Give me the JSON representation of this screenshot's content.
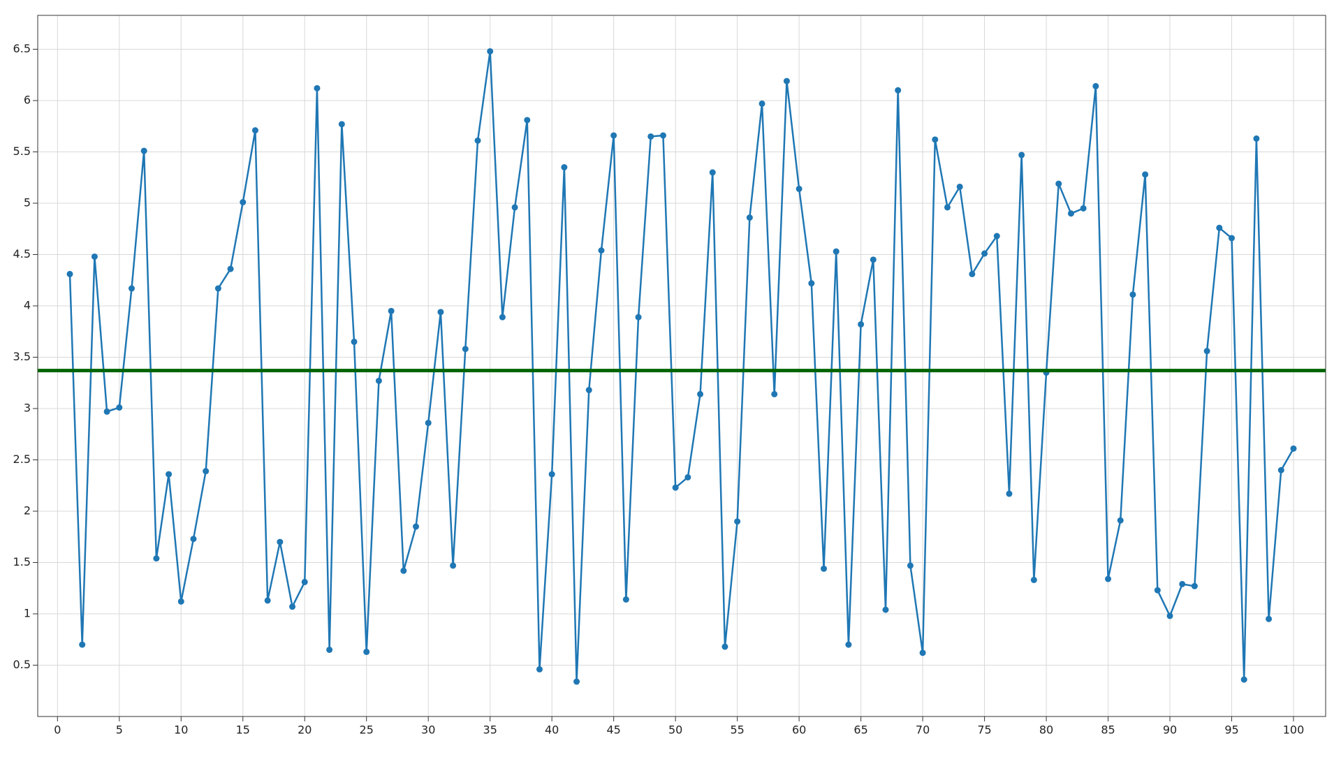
{
  "chart_data": {
    "type": "line",
    "x": [
      1,
      2,
      3,
      4,
      5,
      6,
      7,
      8,
      9,
      10,
      11,
      12,
      13,
      14,
      15,
      16,
      17,
      18,
      19,
      20,
      21,
      22,
      23,
      24,
      25,
      26,
      27,
      28,
      29,
      30,
      31,
      32,
      33,
      34,
      35,
      36,
      37,
      38,
      39,
      40,
      41,
      42,
      43,
      44,
      45,
      46,
      47,
      48,
      49,
      50,
      51,
      52,
      53,
      54,
      55,
      56,
      57,
      58,
      59,
      60,
      61,
      62,
      63,
      64,
      65,
      66,
      67,
      68,
      69,
      70,
      71,
      72,
      73,
      74,
      75,
      76,
      77,
      78,
      79,
      80,
      81,
      82,
      83,
      84,
      85,
      86,
      87,
      88,
      89,
      90,
      91,
      92,
      93,
      94,
      95,
      96,
      97,
      98,
      99,
      100
    ],
    "series": [
      {
        "color": "#1f77b4",
        "values": [
          4.31,
          0.7,
          4.48,
          2.97,
          3.01,
          4.17,
          5.51,
          1.54,
          2.36,
          1.12,
          1.73,
          2.39,
          4.17,
          4.36,
          5.01,
          5.71,
          1.13,
          1.7,
          1.07,
          1.31,
          6.12,
          0.65,
          5.77,
          3.65,
          0.63,
          3.27,
          3.95,
          1.42,
          1.85,
          2.86,
          3.94,
          1.47,
          3.58,
          5.61,
          6.48,
          3.89,
          4.96,
          5.81,
          0.46,
          2.36,
          5.35,
          0.34,
          3.18,
          4.54,
          5.66,
          1.14,
          3.89,
          5.65,
          5.66,
          2.23,
          2.33,
          3.14,
          5.3,
          0.68,
          1.9,
          4.86,
          5.97,
          3.14,
          6.19,
          5.14,
          4.22,
          1.44,
          4.53,
          0.7,
          3.82,
          4.45,
          1.04,
          6.1,
          1.47,
          0.62,
          5.62,
          4.96,
          5.16,
          4.31,
          4.51,
          4.68,
          2.17,
          5.47,
          1.33,
          3.35,
          5.19,
          4.9,
          4.95,
          6.14,
          1.34,
          1.91,
          4.11,
          5.28,
          1.23,
          0.98,
          1.29,
          1.27,
          3.56,
          4.76,
          4.66,
          0.36,
          5.63,
          0.95,
          2.4,
          2.61
        ]
      }
    ],
    "reference_line": {
      "value": 3.37,
      "color": "#006400"
    },
    "xlim": [
      -1.6,
      102.6
    ],
    "xticks": [
      0,
      5,
      10,
      15,
      20,
      25,
      30,
      35,
      40,
      45,
      50,
      55,
      60,
      65,
      70,
      75,
      80,
      85,
      90,
      95,
      100
    ],
    "ylim": [
      0,
      6.83
    ],
    "yticks": [
      0.5,
      1,
      1.5,
      2,
      2.5,
      3,
      3.5,
      4,
      4.5,
      5,
      5.5,
      6,
      6.5
    ],
    "grid": true
  }
}
